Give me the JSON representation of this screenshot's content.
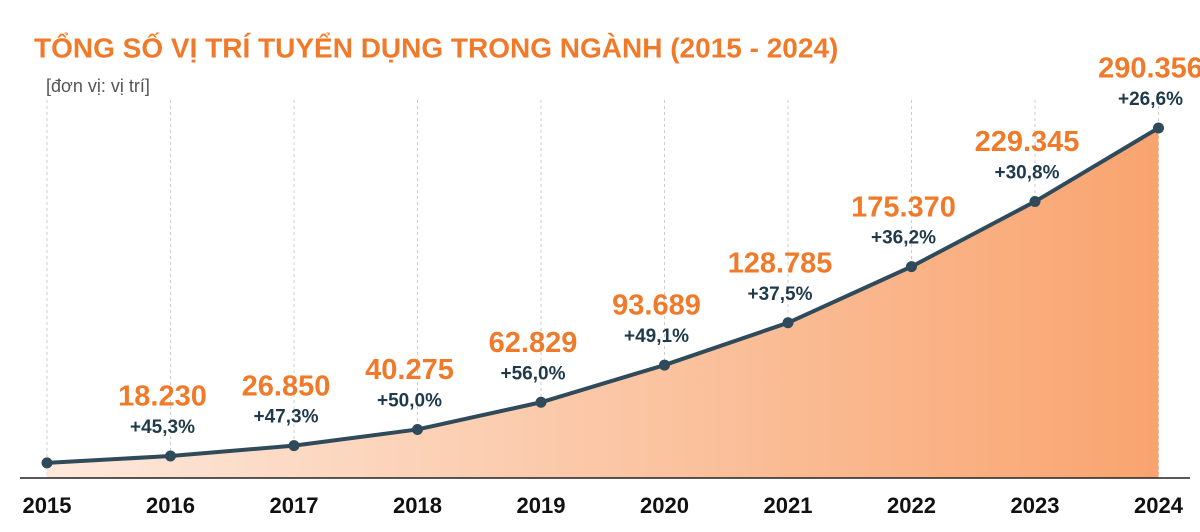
{
  "chart_data": {
    "type": "line",
    "title": "TỔNG SỐ VỊ TRÍ TUYỂN DỤNG TRONG NGÀNH (2015 - 2024)",
    "subtitle": "[đơn vị: vị trí]",
    "categories": [
      "2015",
      "2016",
      "2017",
      "2018",
      "2019",
      "2020",
      "2021",
      "2022",
      "2023",
      "2024"
    ],
    "series": [
      {
        "name": null,
        "color": "#2f4a5a",
        "values": [
          12547,
          18230,
          26850,
          40275,
          62829,
          93689,
          128785,
          175370,
          229345,
          290356
        ],
        "value_labels": [
          null,
          "18.230",
          "26.850",
          "40.275",
          "62.829",
          "93.689",
          "128.785",
          "175.370",
          "229.345",
          "290.356"
        ],
        "growth_labels": [
          null,
          "+45,3%",
          "+47,3%",
          "+50,0%",
          "+56,0%",
          "+49,1%",
          "+37,5%",
          "+36,2%",
          "+30,8%",
          "+26,6%"
        ]
      }
    ],
    "grid": true
  }
}
